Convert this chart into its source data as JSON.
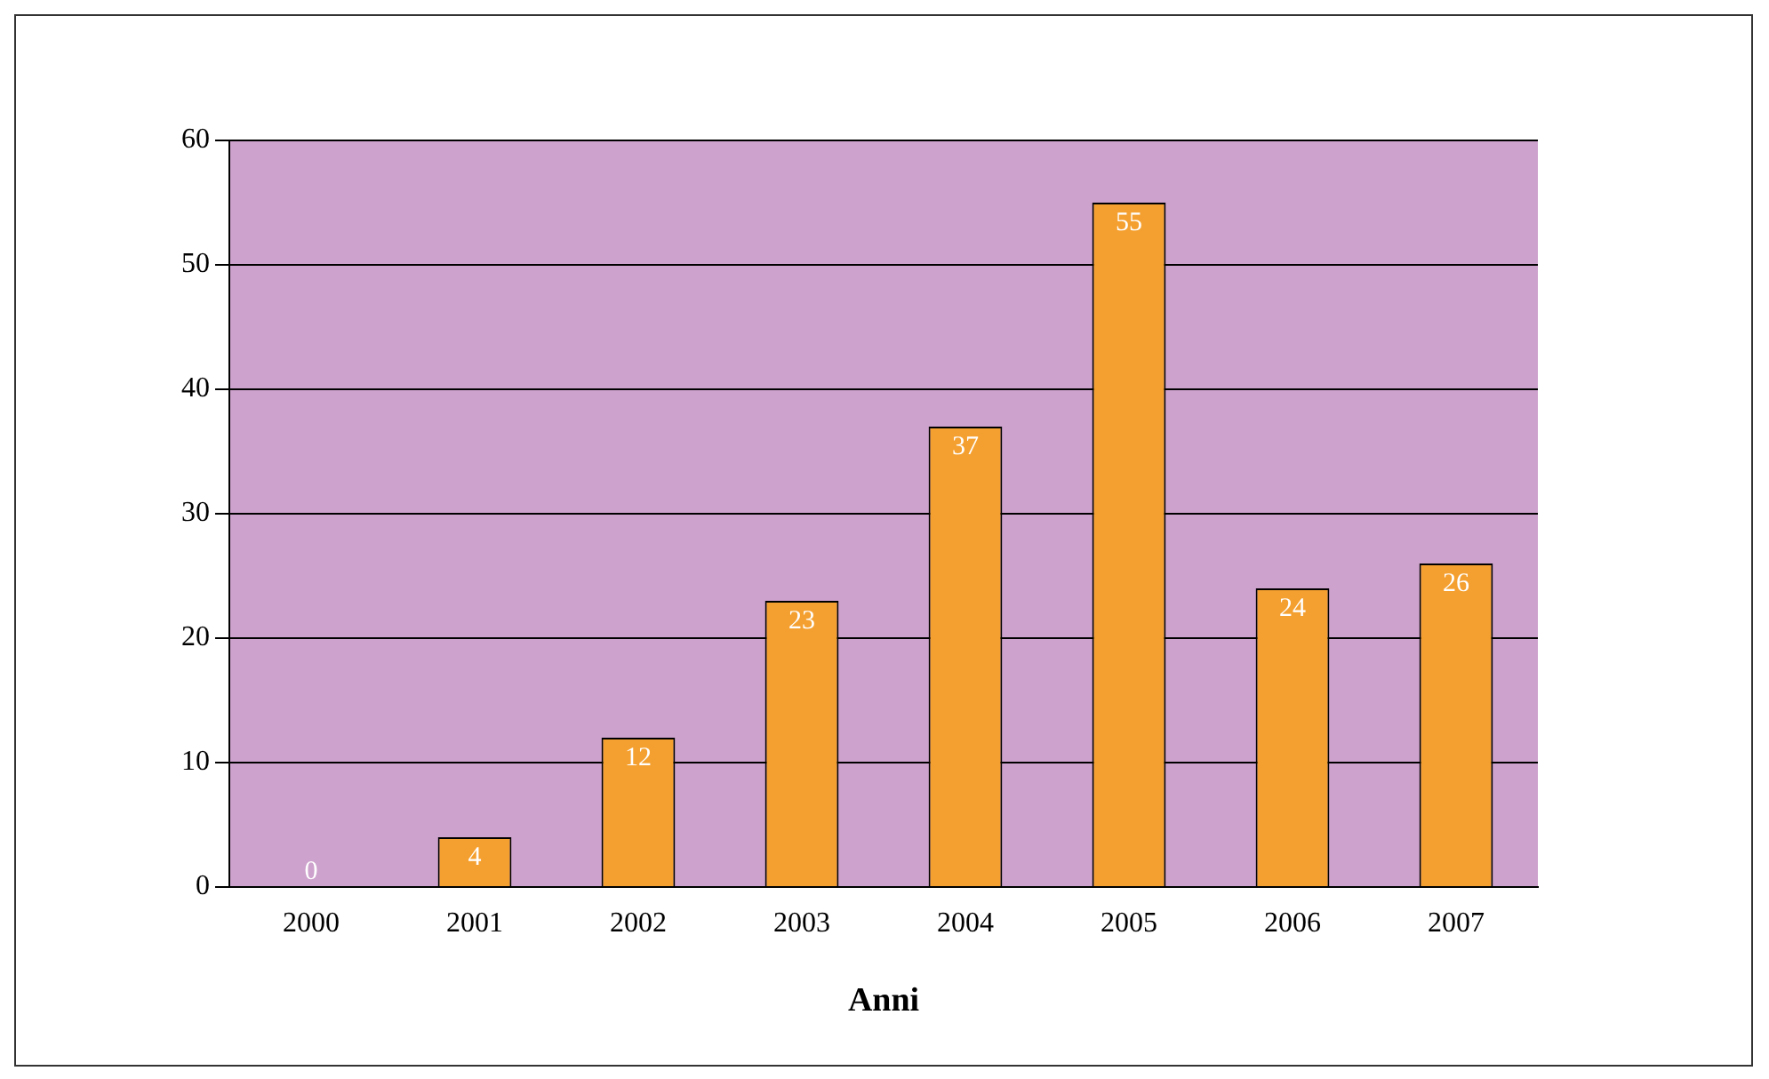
{
  "chart_data": {
    "type": "bar",
    "xlabel": "Anni",
    "categories": [
      "2000",
      "2001",
      "2002",
      "2003",
      "2004",
      "2005",
      "2006",
      "2007"
    ],
    "values": [
      0,
      4,
      12,
      23,
      37,
      55,
      24,
      26
    ],
    "color": "#f4a030",
    "ylim": [
      0,
      60
    ],
    "yticks": [
      0,
      10,
      20,
      30,
      40,
      50,
      60
    ],
    "grid": "y",
    "data_labels": true
  }
}
